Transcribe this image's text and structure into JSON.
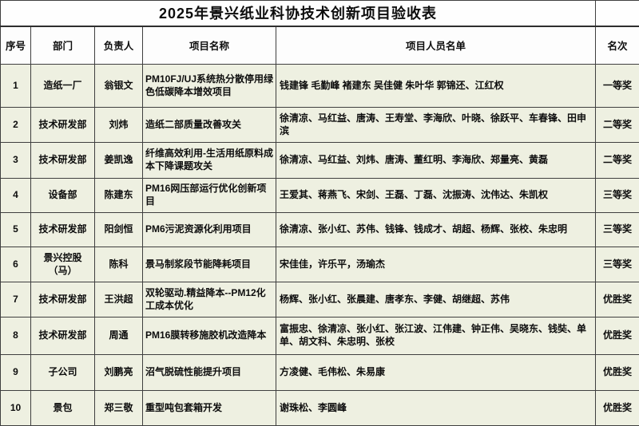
{
  "title": "2025年景兴纸业科协技术创新项目验收表",
  "columns": [
    "序号",
    "部门",
    "负责人",
    "项目名称",
    "项目人员名单",
    "名次"
  ],
  "rows": [
    {
      "no": "1",
      "dept": "造纸一厂",
      "leader": "翁银文",
      "project": "PM10FJ/UJ系统热分散停用绿色低碳降本增效项目",
      "members": "钱建锋 毛勤峰 褚建东 吴佳健 朱叶华 郭锦还、江红权",
      "rank": "一等奖"
    },
    {
      "no": "2",
      "dept": "技术研发部",
      "leader": "刘炜",
      "project": "造纸二部质量改善攻关",
      "members": "徐清凉、马红益、唐涛、王寿堂、李海欣、叶晓、徐跃平、车春锋、田申滨",
      "rank": "二等奖"
    },
    {
      "no": "3",
      "dept": "技术研发部",
      "leader": "姜凯逸",
      "project": "纤维高效利用-生活用纸原料成本下降课题攻关",
      "members": "徐清凉、马红益、刘炜、唐涛、董红明、李海欣、郑量亮、黄磊",
      "rank": "二等奖"
    },
    {
      "no": "4",
      "dept": "设备部",
      "leader": "陈建东",
      "project": "PM16网压部运行优化创新项目",
      "members": "王爱其、蒋燕飞、宋剑、王磊、丁磊、沈振涛、沈伟达、朱凯权",
      "rank": "三等奖"
    },
    {
      "no": "5",
      "dept": "技术研发部",
      "leader": "阳剑恒",
      "project": "PM6污泥资源化利用项目",
      "members": "徐清凉、张小红、苏伟、钱锋、钱成才、胡超、杨辉、张校、朱忠明",
      "rank": "三等奖"
    },
    {
      "no": "6",
      "dept": "景兴控股\n（马）",
      "leader": "陈科",
      "project": "景马制浆段节能降耗项目",
      "members": "宋佳佳，许乐平，汤瑜杰",
      "rank": "三等奖"
    },
    {
      "no": "7",
      "dept": "技术研发部",
      "leader": "王洪超",
      "project": "双轮驱动.精益降本--PM12化工成本优化",
      "members": "杨辉、张小红、张晨建、唐孝东、李健、胡继超、苏伟",
      "rank": "优胜奖"
    },
    {
      "no": "8",
      "dept": "技术研发部",
      "leader": "周通",
      "project": "PM16膜转移施胶机改造降本",
      "members": "富振忠、徐清凉、张小红、张江波、江伟建、钟正伟、吴晓东、钱奘、单单、胡文科、朱忠明、张校",
      "rank": "优胜奖"
    },
    {
      "no": "9",
      "dept": "子公司",
      "leader": "刘鹏亮",
      "project": "沼气脱硫性能提升项目",
      "members": "方凌健、毛伟松、朱易康",
      "rank": "优胜奖"
    },
    {
      "no": "10",
      "dept": "景包",
      "leader": "郑三敬",
      "project": "重型吨包套箱开发",
      "members": "谢珠松、李圆峰",
      "rank": "优胜奖"
    }
  ],
  "colors": {
    "cell_background": "#eef0e1",
    "header_background": "#fdfdfd",
    "border": "#3f3f3f",
    "text": "#0d0d0d"
  }
}
